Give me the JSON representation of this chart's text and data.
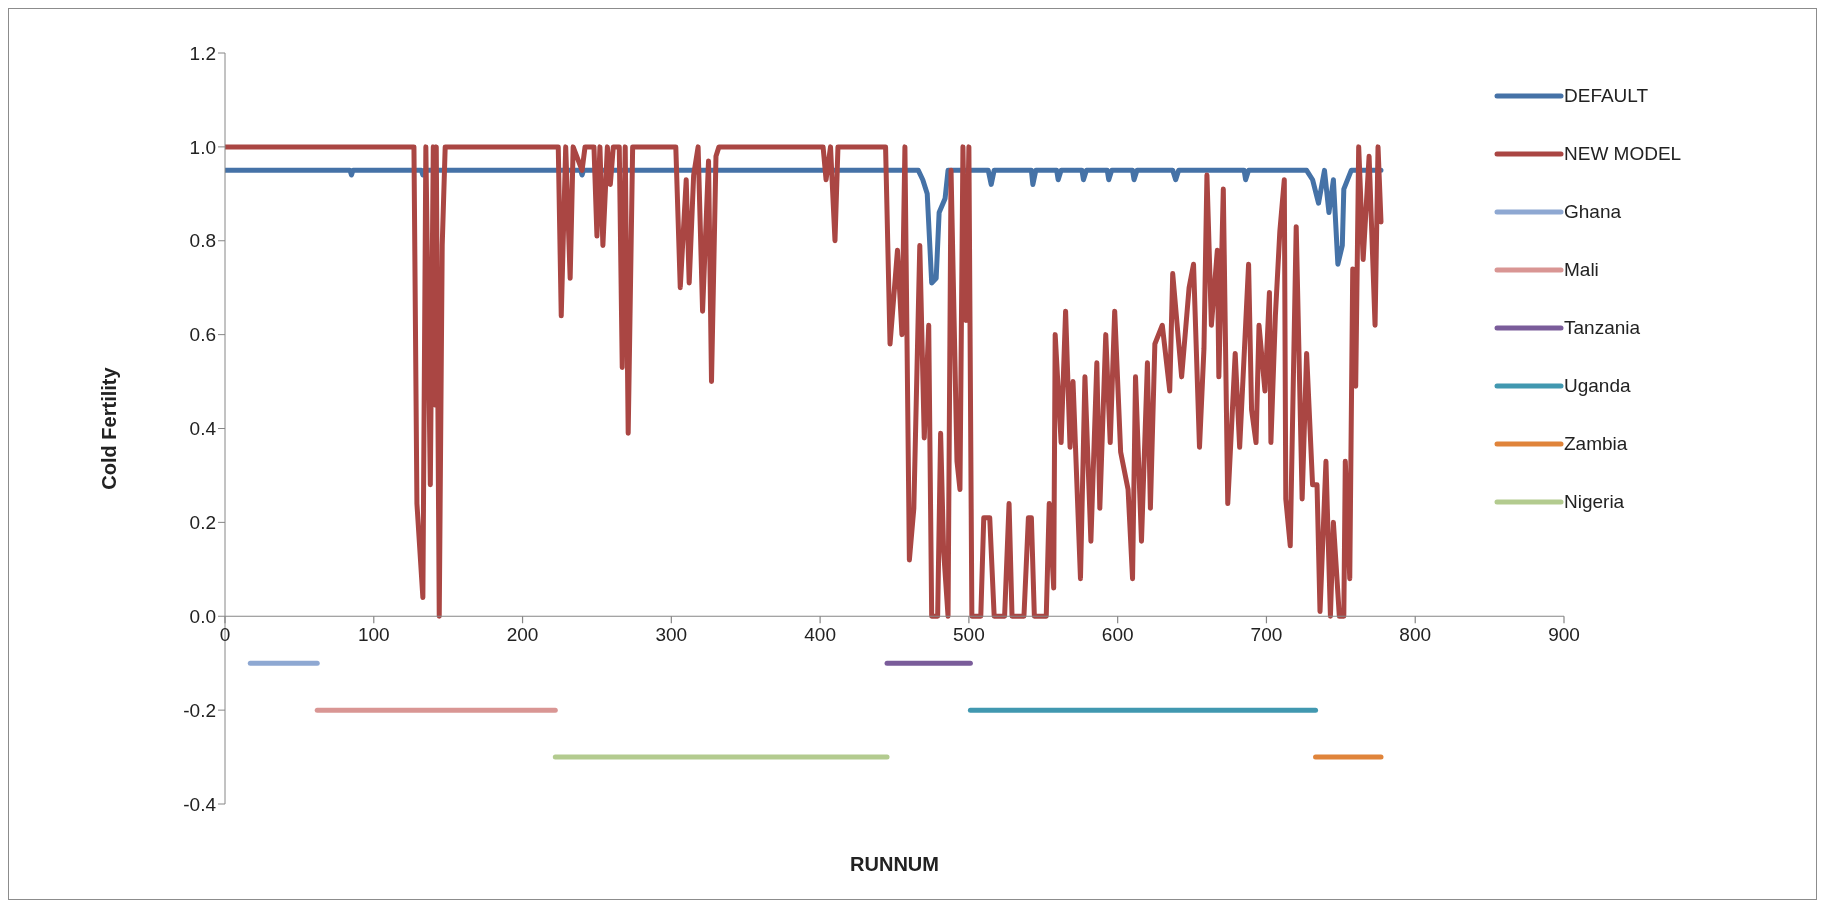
{
  "chart_data": {
    "type": "line",
    "xlabel": "RUNNUM",
    "ylabel": "Cold Fertility",
    "xlim": [
      0,
      900
    ],
    "xticks": [
      0,
      100,
      200,
      300,
      400,
      500,
      600,
      700,
      800,
      900
    ],
    "ylim": [
      -0.4,
      1.2
    ],
    "yticks": [
      -0.4,
      -0.2,
      {
        "value": 0,
        "label": "0.0"
      },
      0.2,
      0.4,
      0.6,
      0.8,
      {
        "value": 1,
        "label": "1.0"
      },
      1.2
    ],
    "legend": "right",
    "marker": "none",
    "line_style": "solid",
    "series": [
      {
        "name": "DEFAULT",
        "color": "#4572a7",
        "x": [
          0,
          84,
          85,
          86,
          132,
          133,
          134,
          239,
          240,
          241,
          466,
          469,
          472,
          475,
          478,
          480,
          484,
          486,
          513,
          515,
          517,
          542,
          543,
          545,
          559,
          560,
          562,
          576,
          577,
          579,
          593,
          594,
          596,
          610,
          611,
          613,
          637,
          639,
          641,
          685,
          686,
          688,
          727,
          731,
          735,
          739,
          742,
          745,
          748,
          751,
          752,
          757,
          777
        ],
        "values": [
          0.95,
          0.95,
          0.94,
          0.95,
          0.95,
          0.94,
          0.95,
          0.95,
          0.94,
          0.95,
          0.95,
          0.93,
          0.9,
          0.71,
          0.72,
          0.86,
          0.89,
          0.95,
          0.95,
          0.92,
          0.95,
          0.95,
          0.92,
          0.95,
          0.95,
          0.93,
          0.95,
          0.95,
          0.93,
          0.95,
          0.95,
          0.93,
          0.95,
          0.95,
          0.93,
          0.95,
          0.95,
          0.93,
          0.95,
          0.95,
          0.93,
          0.95,
          0.95,
          0.93,
          0.88,
          0.95,
          0.86,
          0.93,
          0.75,
          0.79,
          0.91,
          0.95,
          0.95
        ]
      },
      {
        "name": "NEW MODEL",
        "color": "#aa4643",
        "x": [
          0,
          127,
          129,
          133,
          135,
          138,
          140,
          141,
          142,
          144,
          146,
          148,
          224,
          226,
          229,
          232,
          234,
          240,
          242,
          248,
          250,
          252,
          254,
          257,
          259,
          261,
          265,
          267,
          269,
          271,
          274,
          303,
          306,
          310,
          312,
          315,
          318,
          321,
          325,
          327,
          330,
          332,
          402,
          404,
          407,
          410,
          412,
          444,
          447,
          452,
          455,
          457,
          460,
          463,
          467,
          470,
          473,
          475,
          479,
          481,
          483,
          486,
          488,
          492,
          494,
          496,
          498,
          500,
          502,
          508,
          510,
          514,
          517,
          524,
          527,
          529,
          537,
          540,
          542,
          544,
          552,
          554,
          557,
          558,
          562,
          565,
          568,
          570,
          575,
          578,
          582,
          586,
          588,
          592,
          595,
          598,
          602,
          607,
          610,
          612,
          616,
          620,
          622,
          625,
          630,
          635,
          637,
          643,
          648,
          651,
          655,
          658,
          660,
          663,
          667,
          668,
          671,
          674,
          679,
          682,
          688,
          690,
          693,
          695,
          699,
          702,
          703,
          706,
          709,
          712,
          713,
          716,
          720,
          724,
          727,
          731,
          734,
          736,
          740,
          743,
          745,
          749,
          752,
          753,
          756,
          758,
          760,
          762,
          765,
          769,
          773,
          775,
          777
        ],
        "values": [
          1,
          1,
          0.24,
          0.04,
          1,
          0.28,
          1,
          0.45,
          1,
          0,
          0.79,
          1,
          1,
          0.64,
          1,
          0.72,
          1,
          0.95,
          1,
          1,
          0.81,
          1,
          0.79,
          1,
          0.92,
          1,
          1,
          0.53,
          1,
          0.39,
          1,
          1,
          0.7,
          0.93,
          0.71,
          0.94,
          1,
          0.65,
          0.97,
          0.5,
          0.98,
          1,
          1,
          0.93,
          1,
          0.8,
          1,
          1,
          0.58,
          0.78,
          0.6,
          1,
          0.12,
          0.23,
          0.79,
          0.38,
          0.62,
          0,
          0,
          0.39,
          0.14,
          0,
          0.95,
          0.33,
          0.27,
          1,
          0.63,
          1,
          0,
          0,
          0.21,
          0.21,
          0,
          0,
          0.24,
          0,
          0,
          0.21,
          0.21,
          0,
          0,
          0.24,
          0.06,
          0.6,
          0.37,
          0.65,
          0.36,
          0.5,
          0.08,
          0.51,
          0.16,
          0.54,
          0.23,
          0.6,
          0.37,
          0.65,
          0.35,
          0.27,
          0.08,
          0.51,
          0.16,
          0.54,
          0.23,
          0.58,
          0.62,
          0.48,
          0.73,
          0.51,
          0.7,
          0.75,
          0.36,
          0.57,
          0.94,
          0.62,
          0.78,
          0.51,
          0.91,
          0.24,
          0.56,
          0.36,
          0.75,
          0.44,
          0.37,
          0.62,
          0.48,
          0.69,
          0.37,
          0.64,
          0.82,
          0.93,
          0.25,
          0.15,
          0.83,
          0.25,
          0.56,
          0.28,
          0.28,
          0.01,
          0.33,
          0,
          0.2,
          0,
          0,
          0.33,
          0.08,
          0.74,
          0.49,
          1,
          0.76,
          0.98,
          0.62,
          1,
          0.84
        ]
      },
      {
        "name": "Ghana",
        "color": "#8ea8d2",
        "x": [
          17,
          62
        ],
        "values": [
          -0.1,
          -0.1
        ]
      },
      {
        "name": "Mali",
        "color": "#d99694",
        "x": [
          62,
          222
        ],
        "values": [
          -0.2,
          -0.2
        ]
      },
      {
        "name": "Tanzania",
        "color": "#7a5c9a",
        "x": [
          445,
          501
        ],
        "values": [
          -0.1,
          -0.1
        ]
      },
      {
        "name": "Uganda",
        "color": "#4198b0",
        "x": [
          501,
          733
        ],
        "values": [
          -0.2,
          -0.2
        ]
      },
      {
        "name": "Zambia",
        "color": "#e0843a",
        "x": [
          733,
          777
        ],
        "values": [
          -0.3,
          -0.3
        ]
      },
      {
        "name": "Nigeria",
        "color": "#b3cb8f",
        "x": [
          222,
          445
        ],
        "values": [
          -0.3,
          -0.3
        ]
      }
    ]
  }
}
